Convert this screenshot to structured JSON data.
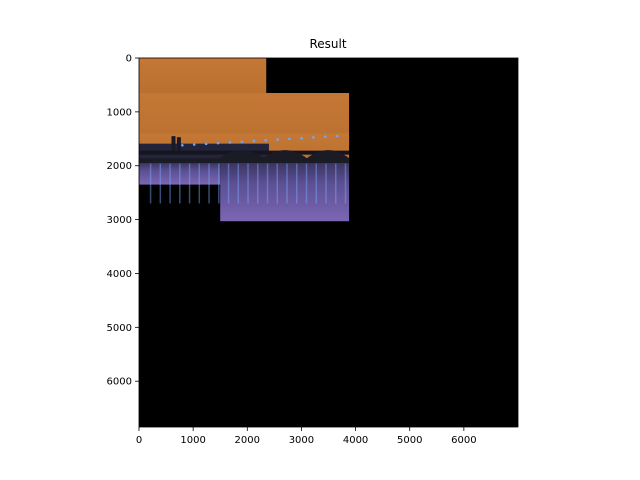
{
  "figure": {
    "title": "Result"
  },
  "axes": {
    "x": {
      "min": 0,
      "max": 7000,
      "ticks": [
        0,
        1000,
        2000,
        3000,
        4000,
        5000,
        6000
      ],
      "labels": [
        "0",
        "1000",
        "2000",
        "3000",
        "4000",
        "5000",
        "6000"
      ]
    },
    "y": {
      "min": 0,
      "max": 6850,
      "inverted": true,
      "ticks": [
        0,
        1000,
        2000,
        3000,
        4000,
        5000,
        6000
      ],
      "labels": [
        "0",
        "1000",
        "2000",
        "3000",
        "4000",
        "5000",
        "6000"
      ]
    }
  },
  "image": {
    "background": "#000000",
    "photo_regions": [
      {
        "kind": "sky",
        "x0": 0,
        "x1": 2350,
        "y0": 0,
        "y1": 650
      },
      {
        "kind": "sky",
        "x0": 0,
        "x1": 3880,
        "y0": 650,
        "y1": 1630
      },
      {
        "kind": "bridge",
        "x0": 0,
        "x1": 3880,
        "y0": 1400,
        "y1": 1950
      },
      {
        "kind": "water",
        "x0": 0,
        "x1": 1500,
        "y0": 1950,
        "y1": 2350
      },
      {
        "kind": "water",
        "x0": 1500,
        "x1": 3880,
        "y0": 1950,
        "y1": 3030
      }
    ]
  },
  "colors": {
    "sky_top": "#c97a3a",
    "sky_bottom": "#b9702f",
    "bridge": "#1b1b26",
    "water_top": "#5a4d8f",
    "water_bottom": "#7a64b0",
    "light": "#6aa8ff"
  }
}
